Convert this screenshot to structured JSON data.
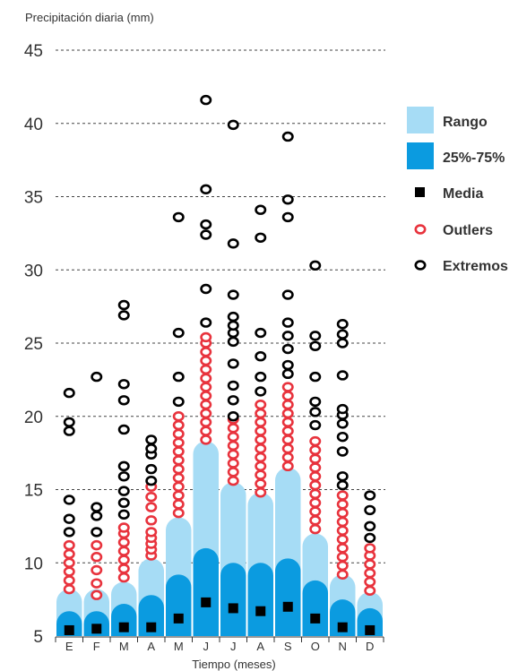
{
  "chart_data": {
    "type": "box",
    "ylabel": "Precipitación diaria (mm)",
    "xlabel": "Tiempo (meses)",
    "ylim": [
      5,
      45
    ],
    "yticks": [
      5,
      10,
      15,
      20,
      25,
      30,
      35,
      40,
      45
    ],
    "grid": "horizontal dashed",
    "legend_position": "right",
    "categories": [
      "E",
      "F",
      "M",
      "A",
      "M",
      "J",
      "J",
      "A",
      "S",
      "O",
      "N",
      "D"
    ],
    "range_top": [
      8.2,
      8.2,
      8.7,
      10.3,
      13.1,
      18.3,
      15.5,
      14.8,
      16.5,
      12.0,
      9.2,
      8.0
    ],
    "q75": [
      6.7,
      6.7,
      7.2,
      7.8,
      9.2,
      11.0,
      10.0,
      10.0,
      10.3,
      8.8,
      7.5,
      6.9
    ],
    "media": [
      5.4,
      5.5,
      5.6,
      5.6,
      6.2,
      7.3,
      6.9,
      6.7,
      7.0,
      6.2,
      5.6,
      5.4
    ],
    "outliers": [
      [
        8.2,
        8.8,
        9.4,
        10.0,
        10.6,
        11.2
      ],
      [
        7.8,
        8.6,
        9.5,
        10.4,
        11.2
      ],
      [
        9.0,
        9.6,
        10.2,
        10.8,
        11.4,
        12.0,
        12.4
      ],
      [
        10.5,
        10.9,
        11.3,
        11.7,
        12.1,
        12.9,
        13.8,
        14.5,
        15.2
      ],
      [
        13.4,
        14.0,
        14.6,
        15.2,
        15.8,
        16.4,
        17.0,
        17.6,
        18.2,
        18.8,
        19.4,
        20.0
      ],
      [
        18.4,
        19.0,
        19.6,
        20.2,
        20.8,
        21.4,
        22.0,
        22.6,
        23.2,
        23.8,
        24.4,
        25.0,
        25.4
      ],
      [
        15.6,
        16.2,
        16.8,
        17.4,
        18.0,
        18.6,
        19.2,
        19.8
      ],
      [
        14.8,
        15.4,
        16.0,
        16.6,
        17.2,
        17.8,
        18.4,
        19.0,
        19.6,
        20.2,
        20.8
      ],
      [
        16.6,
        17.2,
        17.8,
        18.4,
        19.0,
        19.6,
        20.2,
        20.8,
        21.4,
        22.0
      ],
      [
        12.3,
        12.9,
        13.5,
        14.1,
        14.7,
        15.3,
        15.9,
        16.5,
        17.1,
        17.7,
        18.3
      ],
      [
        9.2,
        9.8,
        10.4,
        11.0,
        11.6,
        12.2,
        12.8,
        13.4,
        14.0,
        14.6
      ],
      [
        8.1,
        8.7,
        9.3,
        9.9,
        10.5,
        11.0
      ]
    ],
    "extremos": [
      [
        12.1,
        13.0,
        14.3,
        19.0,
        19.6,
        21.6
      ],
      [
        12.1,
        13.2,
        13.8,
        22.7
      ],
      [
        13.3,
        14.1,
        14.9,
        15.9,
        16.6,
        19.1,
        21.1,
        22.2,
        26.9,
        27.6
      ],
      [
        15.6,
        16.4,
        17.4,
        17.8,
        18.4
      ],
      [
        21.0,
        22.7,
        25.7,
        33.6
      ],
      [
        26.4,
        28.7,
        32.4,
        33.1,
        35.5,
        41.6
      ],
      [
        20.0,
        21.1,
        22.1,
        23.6,
        25.1,
        25.7,
        26.2,
        26.8,
        28.3,
        31.8,
        39.9
      ],
      [
        21.7,
        22.7,
        24.1,
        25.7,
        32.2,
        34.1
      ],
      [
        22.9,
        23.5,
        24.6,
        25.5,
        26.4,
        28.3,
        33.6,
        34.8,
        39.1
      ],
      [
        19.4,
        20.3,
        21.0,
        22.7,
        24.8,
        25.5,
        30.3
      ],
      [
        15.3,
        15.9,
        17.6,
        18.6,
        19.5,
        20.1,
        20.5,
        22.8,
        25.0,
        25.6,
        26.3
      ],
      [
        11.7,
        12.5,
        13.6,
        14.6
      ]
    ],
    "legend": [
      "Rango",
      "25%-75%",
      "Media",
      "Outlers",
      "Extremos"
    ],
    "colors": {
      "rango": "#a6dcf5",
      "iqr": "#0b9be0",
      "media": "#000000",
      "outlier": "#e8333d",
      "extremo": "#000000",
      "grid": "#444444",
      "text": "#333333"
    }
  }
}
